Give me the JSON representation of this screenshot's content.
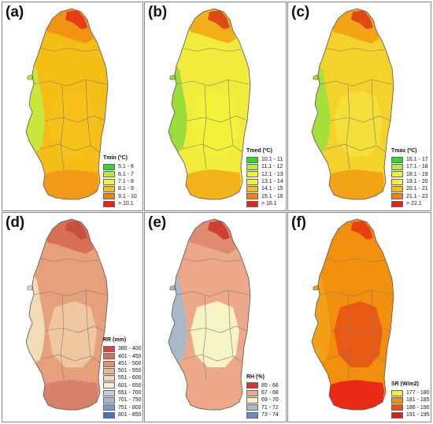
{
  "panels": [
    {
      "label": "(a)",
      "legend_title": "Tmin (ºC)",
      "base": "#f5be14",
      "coast": "#c8e63c",
      "north": "#f29312",
      "peak": "#e63b14",
      "south": "#f09a18",
      "interior": "#f6c21a",
      "classes": [
        {
          "label": "5.1 - 6",
          "color": "#2ed62e"
        },
        {
          "label": "6.1 - 7",
          "color": "#b7e844"
        },
        {
          "label": "7.1 - 8",
          "color": "#f3f13a"
        },
        {
          "label": "8.1 - 9",
          "color": "#f5be14"
        },
        {
          "label": "9.1 - 10",
          "color": "#f0811a"
        },
        {
          "label": "> 10.1",
          "color": "#e02618"
        }
      ]
    },
    {
      "label": "(b)",
      "legend_title": "Tmed (ºC)",
      "base": "#f1ec3c",
      "coast": "#9bdc3c",
      "north": "#f2b018",
      "peak": "#e04818",
      "south": "#f2b41a",
      "interior": "#f4f238",
      "classes": [
        {
          "label": "10.1 - 11",
          "color": "#2ed62e"
        },
        {
          "label": "11.1 - 12",
          "color": "#b7e844"
        },
        {
          "label": "12.1 - 13",
          "color": "#eef03c"
        },
        {
          "label": "13.1 - 14",
          "color": "#f6ee3a"
        },
        {
          "label": "14.1 - 15",
          "color": "#f5be14"
        },
        {
          "label": "15.1 - 16",
          "color": "#f0811a"
        },
        {
          "label": "> 16.1",
          "color": "#e02618"
        }
      ]
    },
    {
      "label": "(c)",
      "legend_title": "Tmax (ºC)",
      "base": "#f4d22a",
      "coast": "#a8de3c",
      "north": "#f2a414",
      "peak": "#e04818",
      "south": "#f2a416",
      "interior": "#f5e03a",
      "classes": [
        {
          "label": "16.1 - 17",
          "color": "#2ed62e"
        },
        {
          "label": "17.1 - 18",
          "color": "#b7e844"
        },
        {
          "label": "18.1 - 19",
          "color": "#eef03c"
        },
        {
          "label": "19.1 - 20",
          "color": "#f6ee3a"
        },
        {
          "label": "20.1 - 21",
          "color": "#f5be14"
        },
        {
          "label": "21.1 - 22",
          "color": "#f0811a"
        },
        {
          "label": "> 22.1",
          "color": "#e02618"
        }
      ]
    },
    {
      "label": "(d)",
      "legend_title": "RR (mm)",
      "base": "#e6a07c",
      "coast": "#f2dcb6",
      "north": "#d87058",
      "peak": "#c8503c",
      "south": "#d8806a",
      "interior": "#f0c8a0",
      "classes": [
        {
          "label": "380 - 400",
          "color": "#d04a36"
        },
        {
          "label": "401 - 450",
          "color": "#d96e55"
        },
        {
          "label": "451 - 500",
          "color": "#e49272"
        },
        {
          "label": "501 - 550",
          "color": "#eeb692"
        },
        {
          "label": "551 - 600",
          "color": "#f5d6b2"
        },
        {
          "label": "601 - 650",
          "color": "#f3efcc"
        },
        {
          "label": "651 - 700",
          "color": "#c8cbd6"
        },
        {
          "label": "701 - 750",
          "color": "#a9b5d6"
        },
        {
          "label": "751 - 800",
          "color": "#7b94d2"
        },
        {
          "label": "801 - 850",
          "color": "#4472c8"
        }
      ]
    },
    {
      "label": "(e)",
      "legend_title": "RH (%)",
      "base": "#eca888",
      "coast": "#a9b9c8",
      "north": "#e08a70",
      "peak": "#d04030",
      "south": "#eca888",
      "interior": "#f7f3c4",
      "classes": [
        {
          "label": "65 - 66",
          "color": "#d03a2c"
        },
        {
          "label": "67 - 68",
          "color": "#eca888"
        },
        {
          "label": "69 - 70",
          "color": "#f7f3c4"
        },
        {
          "label": "71 - 72",
          "color": "#a9b9c8"
        },
        {
          "label": "73 - 74",
          "color": "#6a8cc2"
        }
      ]
    },
    {
      "label": "(f)",
      "legend_title": "SR (W/m2)",
      "base": "#f2900e",
      "coast": "#f2a018",
      "north": "#f28e10",
      "peak": "#ea4010",
      "south": "#ea2a16",
      "interior": "#eb5a12",
      "classes": [
        {
          "label": "177 - 180",
          "color": "#f5ee3c"
        },
        {
          "label": "181 - 185",
          "color": "#f2900e"
        },
        {
          "label": "186 - 190",
          "color": "#ea5212"
        },
        {
          "label": "191 - 195",
          "color": "#e21c18"
        }
      ]
    }
  ]
}
